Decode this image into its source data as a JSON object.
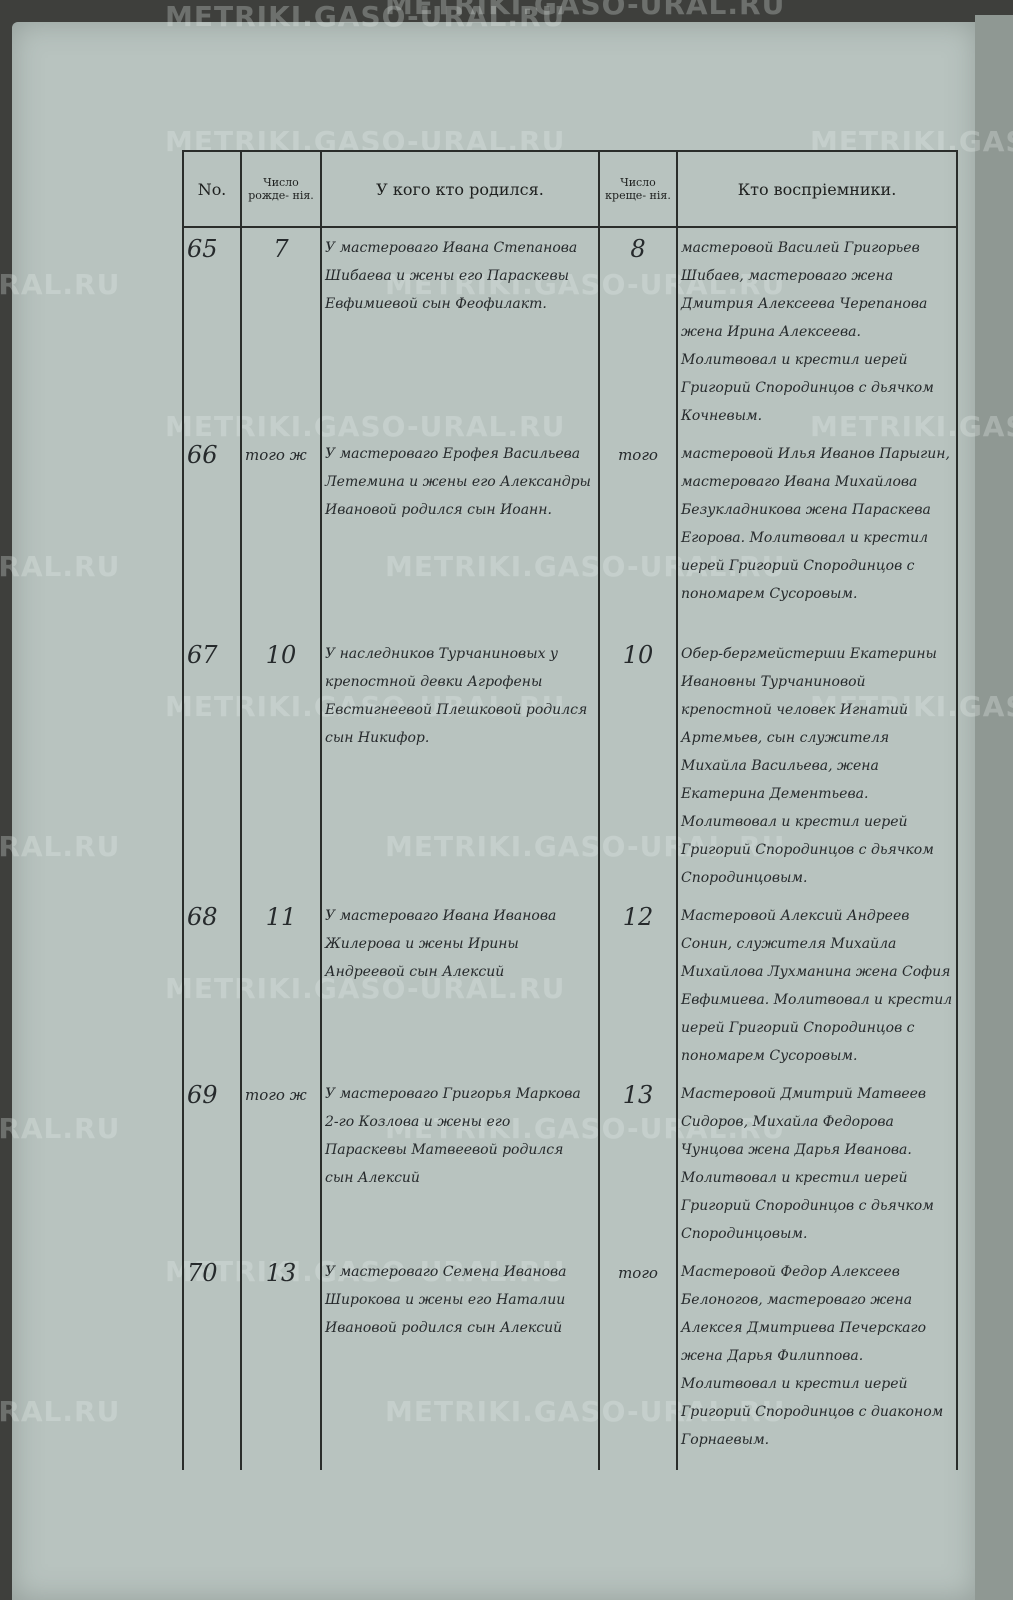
{
  "watermark": "METRIKI.GASO-URAL.RU",
  "header": {
    "no": "No.",
    "birth_date": "Число рожде- нія.",
    "parents": "У кого кто родился.",
    "baptism_date": "Число креще- нія.",
    "godparents": "Кто воспріемники."
  },
  "entries": [
    {
      "no": "65",
      "birth": "7",
      "parents": "У мастероваго Ивана Степанова Шибаева и жены его Параскевы Евфимиевой сын Феофилакт.",
      "baptism": "8",
      "godparents": "мастеровой Василей Григорьев Шибаев, мастероваго жена Дмитрия Алексеева Черепанова жена Ирина Алексеева. Молитвовал и крестил иерей Григорий Спородинцов с дьячком Кочневым."
    },
    {
      "no": "66",
      "birth": "того ж",
      "parents": "У мастероваго Ерофея Васильева Летемина и жены его Александры Ивановой родился сын Иоанн.",
      "baptism": "того",
      "godparents": "мастеровой Илья Иванов Парыгин, мастероваго Ивана Михайлова Безукладникова жена Параскева Егорова. Молитвовал и крестил иерей Григорий Спородинцов с пономарем Сусоровым."
    },
    {
      "no": "67",
      "birth": "10",
      "parents": "У наследников Турчаниновых у крепостной девки Агрофены Евстигнеевой Плешковой родился сын Никифор.",
      "baptism": "10",
      "godparents": "Обер-бергмейстерши Екатерины Ивановны Турчаниновой крепостной человек Игнатий Артемьев, сын служителя Михайла Васильева, жена Екатерина Дементьева. Молитвовал и крестил иерей Григорий Спородинцов с дьячком Спородинцовым."
    },
    {
      "no": "68",
      "birth": "11",
      "parents": "У мастероваго Ивана Иванова Жилерова и жены Ирины Андреевой сын Алексий",
      "baptism": "12",
      "godparents": "Мастеровой Алексий Андреев Сонин, служителя Михайла Михайлова Лухманина жена София Евфимиева. Молитвовал и крестил иерей Григорий Спородинцов с пономарем Сусоровым."
    },
    {
      "no": "69",
      "birth": "того ж",
      "parents": "У мастероваго Григорья Маркова 2-го Козлова и жены его Параскевы Матвеевой родился сын Алексий",
      "baptism": "13",
      "godparents": "Мастеровой Дмитрий Матвеев Сидоров, Михайла Федорова Чунцова жена Дарья Иванова. Молитвовал и крестил иерей Григорий Спородинцов с дьячком Спородинцовым."
    },
    {
      "no": "70",
      "birth": "13",
      "parents": "У мастероваго Семена Иванова Широкова и жены его Наталии Ивановой родился сын Алексий",
      "baptism": "того",
      "godparents": "Мастеровой Федор Алексеев Белоногов, мастероваго жена Алексея Дмитриева Печерскаго жена Дарья Филиппова. Молитвовал и крестил иерей Григорий Спородинцов с диаконом Горнаевым."
    }
  ]
}
